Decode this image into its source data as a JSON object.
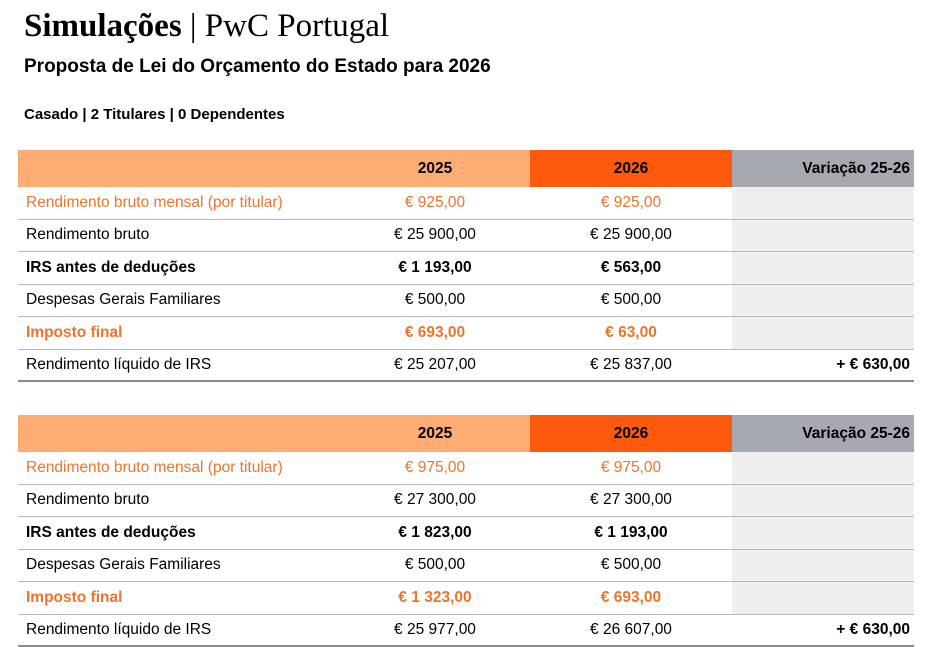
{
  "header": {
    "title": "Simulações",
    "brand": "| PwC Portugal"
  },
  "subtitle": "Proposta de Lei do Orçamento do Estado para 2026",
  "scenario": "Casado | 2 Titulares | 0 Dependentes",
  "tables": [
    {
      "columns": [
        "2025",
        "2026",
        "Variação 25-26"
      ],
      "rows": [
        [
          "Rendimento bruto mensal (por titular)",
          "€ 925,00",
          "€ 925,00"
        ],
        [
          "Rendimento bruto",
          "€ 25 900,00",
          "€ 25 900,00"
        ],
        [
          "IRS antes de deduções",
          "€ 1 193,00",
          "€ 563,00"
        ],
        [
          "Despesas Gerais Familiares",
          "€ 500,00",
          "€ 500,00"
        ],
        [
          "Imposto final",
          "€ 693,00",
          "€ 63,00"
        ],
        [
          "Rendimento líquido de IRS",
          "€ 25 207,00",
          "€ 25 837,00",
          "+ € 630,00"
        ]
      ]
    },
    {
      "columns": [
        "2025",
        "2026",
        "Variação 25-26"
      ],
      "rows": [
        [
          "Rendimento bruto mensal (por titular)",
          "€ 975,00",
          "€ 975,00"
        ],
        [
          "Rendimento bruto",
          "€ 27 300,00",
          "€ 27 300,00"
        ],
        [
          "IRS antes de deduções",
          "€ 1 823,00",
          "€ 1 193,00"
        ],
        [
          "Despesas Gerais Familiares",
          "€ 500,00",
          "€ 500,00"
        ],
        [
          "Imposto final",
          "€ 1 323,00",
          "€ 693,00"
        ],
        [
          "Rendimento líquido de IRS",
          "€ 25 977,00",
          "€ 26 607,00",
          "+ € 630,00"
        ]
      ]
    }
  ]
}
